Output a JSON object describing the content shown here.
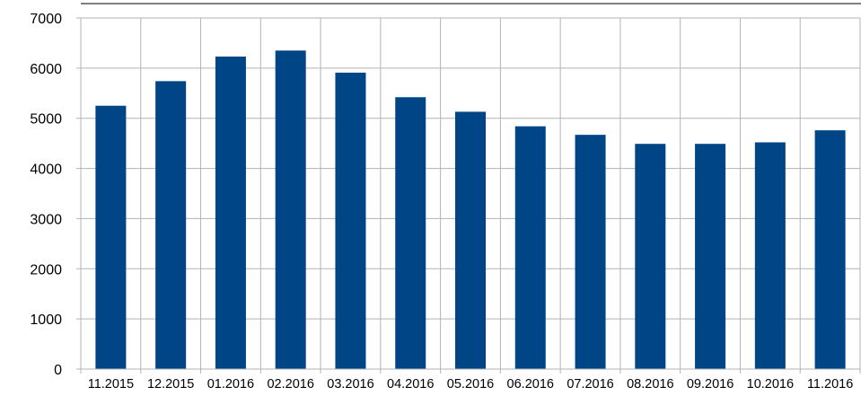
{
  "chart_data": {
    "type": "bar",
    "title": "",
    "xlabel": "",
    "ylabel": "",
    "categories": [
      "11.2015",
      "12.2015",
      "01.2016",
      "02.2016",
      "03.2016",
      "04.2016",
      "05.2016",
      "06.2016",
      "07.2016",
      "08.2016",
      "09.2016",
      "10.2016",
      "11.2016"
    ],
    "values": [
      5250,
      5740,
      6230,
      6350,
      5910,
      5420,
      5130,
      4840,
      4670,
      4490,
      4490,
      4520,
      4760
    ],
    "ylim": [
      0,
      7000
    ],
    "yticks": [
      0,
      1000,
      2000,
      3000,
      4000,
      5000,
      6000,
      7000
    ],
    "grid": true,
    "legend": "none",
    "colors": {
      "bar": "#004586",
      "grid": "#b3b3b3",
      "axis": "#b3b3b3",
      "top_border": "#000000"
    }
  }
}
